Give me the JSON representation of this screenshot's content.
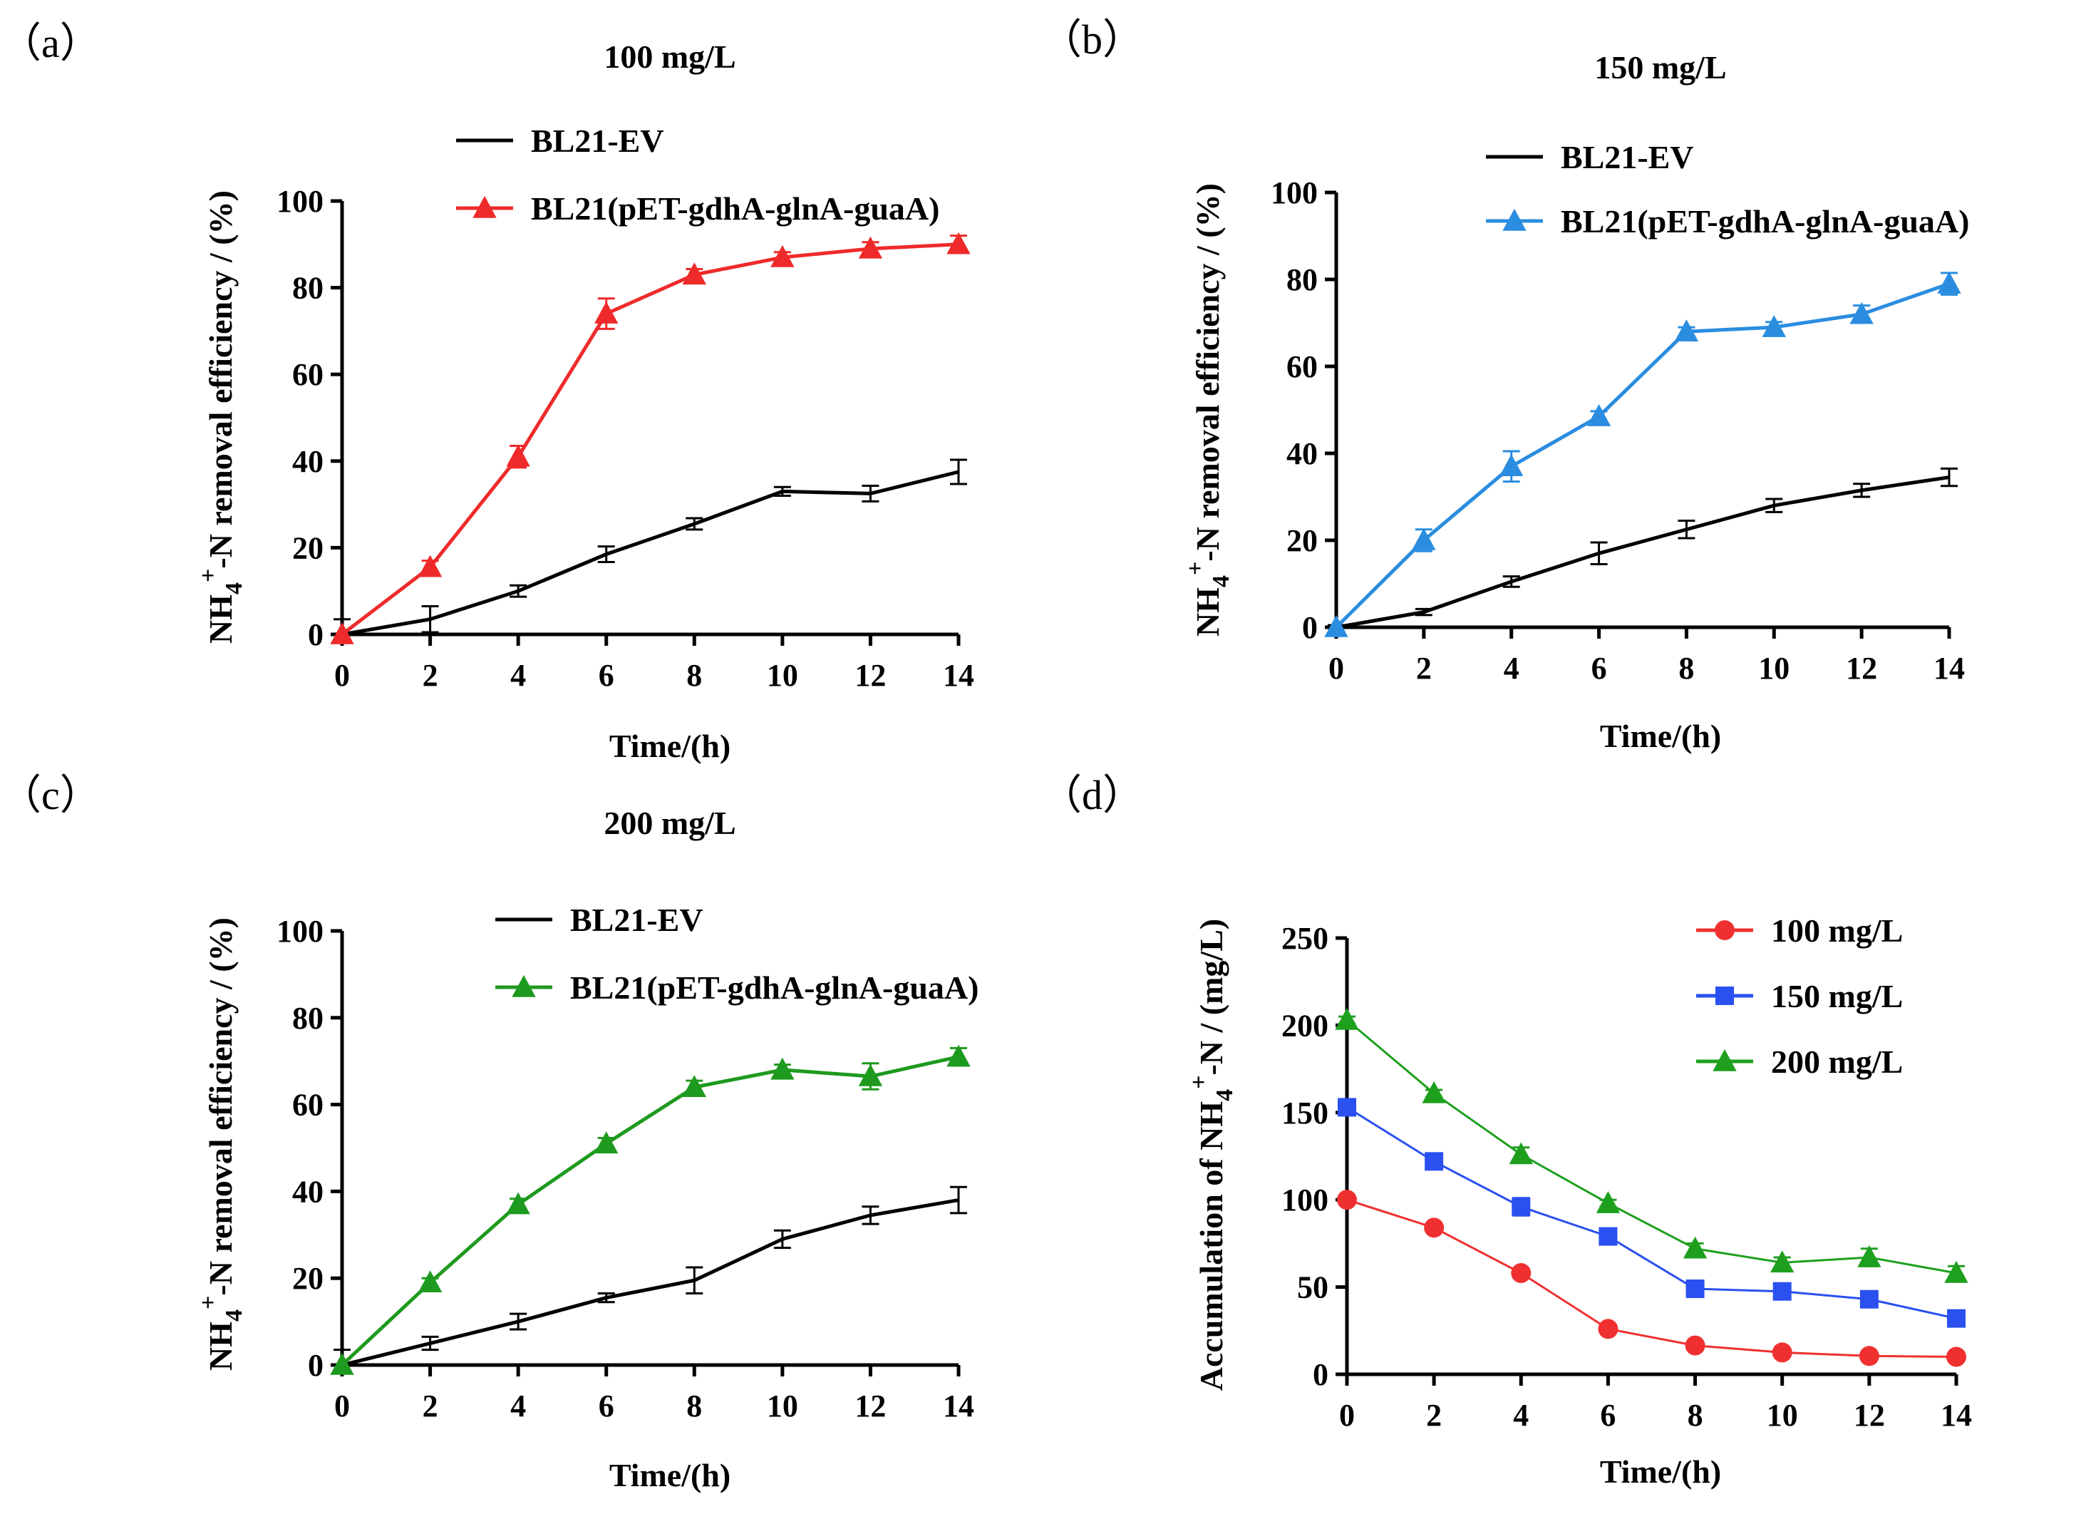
{
  "figure": {
    "panels": [
      "a",
      "b",
      "c",
      "d"
    ]
  },
  "chart_data": [
    {
      "id": "a",
      "type": "line",
      "panel_label": "（a）",
      "title": "100 mg/L",
      "xlabel": "Time/(h)",
      "ylabel_parts": [
        "NH",
        "4",
        "+",
        "-N removal efficiency /  (%)"
      ],
      "x": [
        0,
        2,
        4,
        6,
        8,
        10,
        12,
        14
      ],
      "xlim": [
        0,
        14
      ],
      "ylim": [
        0,
        100
      ],
      "yticks": [
        0,
        20,
        40,
        60,
        80,
        100
      ],
      "xticks": [
        0,
        2,
        4,
        6,
        8,
        10,
        12,
        14
      ],
      "legend": "top-left",
      "series": [
        {
          "name": "BL21-EV",
          "color": "#000000",
          "marker": "none",
          "values": [
            0,
            3.5,
            10,
            18.5,
            25.5,
            33,
            32.5,
            37.5
          ],
          "errors": [
            3.5,
            3,
            1.3,
            1.8,
            1.3,
            1,
            1.8,
            2.8
          ]
        },
        {
          "name": "BL21(pET-gdhA-glnA-guaA)",
          "color": "#ef2a2a",
          "marker": "triangle",
          "values": [
            0,
            15.5,
            41,
            74,
            83,
            87,
            89,
            90
          ],
          "errors": [
            0,
            1.5,
            2.5,
            3.5,
            1.3,
            1.2,
            1.5,
            2
          ]
        }
      ]
    },
    {
      "id": "b",
      "type": "line",
      "panel_label": "（b）",
      "title": "150 mg/L",
      "xlabel": "Time/(h)",
      "ylabel_parts": [
        "NH",
        "4",
        "+",
        "-N removal efficiency /  (%)"
      ],
      "x": [
        0,
        2,
        4,
        6,
        8,
        10,
        12,
        14
      ],
      "xlim": [
        0,
        14
      ],
      "ylim": [
        0,
        100
      ],
      "yticks": [
        0,
        20,
        40,
        60,
        80,
        100
      ],
      "xticks": [
        0,
        2,
        4,
        6,
        8,
        10,
        12,
        14
      ],
      "legend": "top-left",
      "series": [
        {
          "name": "BL21-EV",
          "color": "#000000",
          "marker": "none",
          "values": [
            0,
            3.5,
            10.5,
            17,
            22.5,
            28,
            31.5,
            34.5
          ],
          "errors": [
            0.5,
            0.7,
            1.2,
            2.5,
            2,
            1.5,
            1.5,
            2
          ]
        },
        {
          "name": "BL21(pET-gdhA-glnA-guaA)",
          "color": "#2a8de0",
          "marker": "triangle",
          "values": [
            0,
            20,
            37,
            48.5,
            68,
            69,
            72,
            79
          ],
          "errors": [
            0,
            2.5,
            3.5,
            1.2,
            1,
            1.2,
            2,
            2.5
          ]
        }
      ]
    },
    {
      "id": "c",
      "type": "line",
      "panel_label": "（c）",
      "title": "200 mg/L",
      "xlabel": "Time/(h)",
      "ylabel_parts": [
        "NH",
        "4",
        "+",
        "-N removal efficiency /  (%)"
      ],
      "x": [
        0,
        2,
        4,
        6,
        8,
        10,
        12,
        14
      ],
      "xlim": [
        0,
        14
      ],
      "ylim": [
        0,
        100
      ],
      "yticks": [
        0,
        20,
        40,
        60,
        80,
        100
      ],
      "xticks": [
        0,
        2,
        4,
        6,
        8,
        10,
        12,
        14
      ],
      "legend": "top-left",
      "series": [
        {
          "name": "BL21-EV",
          "color": "#000000",
          "marker": "none",
          "values": [
            0,
            5,
            10,
            15.5,
            19.5,
            29,
            34.5,
            38
          ],
          "errors": [
            3.5,
            1.5,
            1.8,
            1,
            3,
            2,
            2,
            3
          ]
        },
        {
          "name": "BL21(pET-gdhA-glnA-guaA)",
          "color": "#1e9a1e",
          "marker": "triangle",
          "values": [
            0,
            19,
            37,
            51,
            64,
            68,
            66.5,
            71
          ],
          "errors": [
            0,
            1,
            1.3,
            1.3,
            1.5,
            1.2,
            3,
            2
          ]
        }
      ]
    },
    {
      "id": "d",
      "type": "line",
      "panel_label": "（d）",
      "title": "",
      "xlabel": "Time/(h)",
      "ylabel_parts": [
        "Accumulation of NH",
        "4",
        "+",
        "-N /  (mg/L)"
      ],
      "x": [
        0,
        2,
        4,
        6,
        8,
        10,
        12,
        14
      ],
      "xlim": [
        0,
        14
      ],
      "ylim": [
        0,
        250
      ],
      "yticks": [
        0,
        50,
        100,
        150,
        200,
        250
      ],
      "xticks": [
        0,
        2,
        4,
        6,
        8,
        10,
        12,
        14
      ],
      "legend": "top-right",
      "series": [
        {
          "name": "100 mg/L",
          "color": "#f03030",
          "marker": "circle",
          "values": [
            100,
            84,
            58,
            26,
            16.5,
            12.5,
            10.5,
            10
          ],
          "errors": [
            2,
            2,
            2,
            2,
            1.5,
            1,
            1,
            1
          ]
        },
        {
          "name": "150 mg/L",
          "color": "#2a50f0",
          "marker": "square",
          "values": [
            153,
            122,
            96,
            79,
            49,
            47.5,
            43,
            32
          ],
          "errors": [
            2,
            2,
            5,
            2,
            2,
            2,
            2,
            2
          ]
        },
        {
          "name": "200 mg/L",
          "color": "#1ea01e",
          "marker": "triangle",
          "values": [
            203,
            161,
            126,
            98,
            72,
            64,
            67,
            58
          ],
          "errors": [
            2,
            2,
            4,
            2,
            3,
            3,
            5,
            4
          ]
        }
      ]
    }
  ]
}
